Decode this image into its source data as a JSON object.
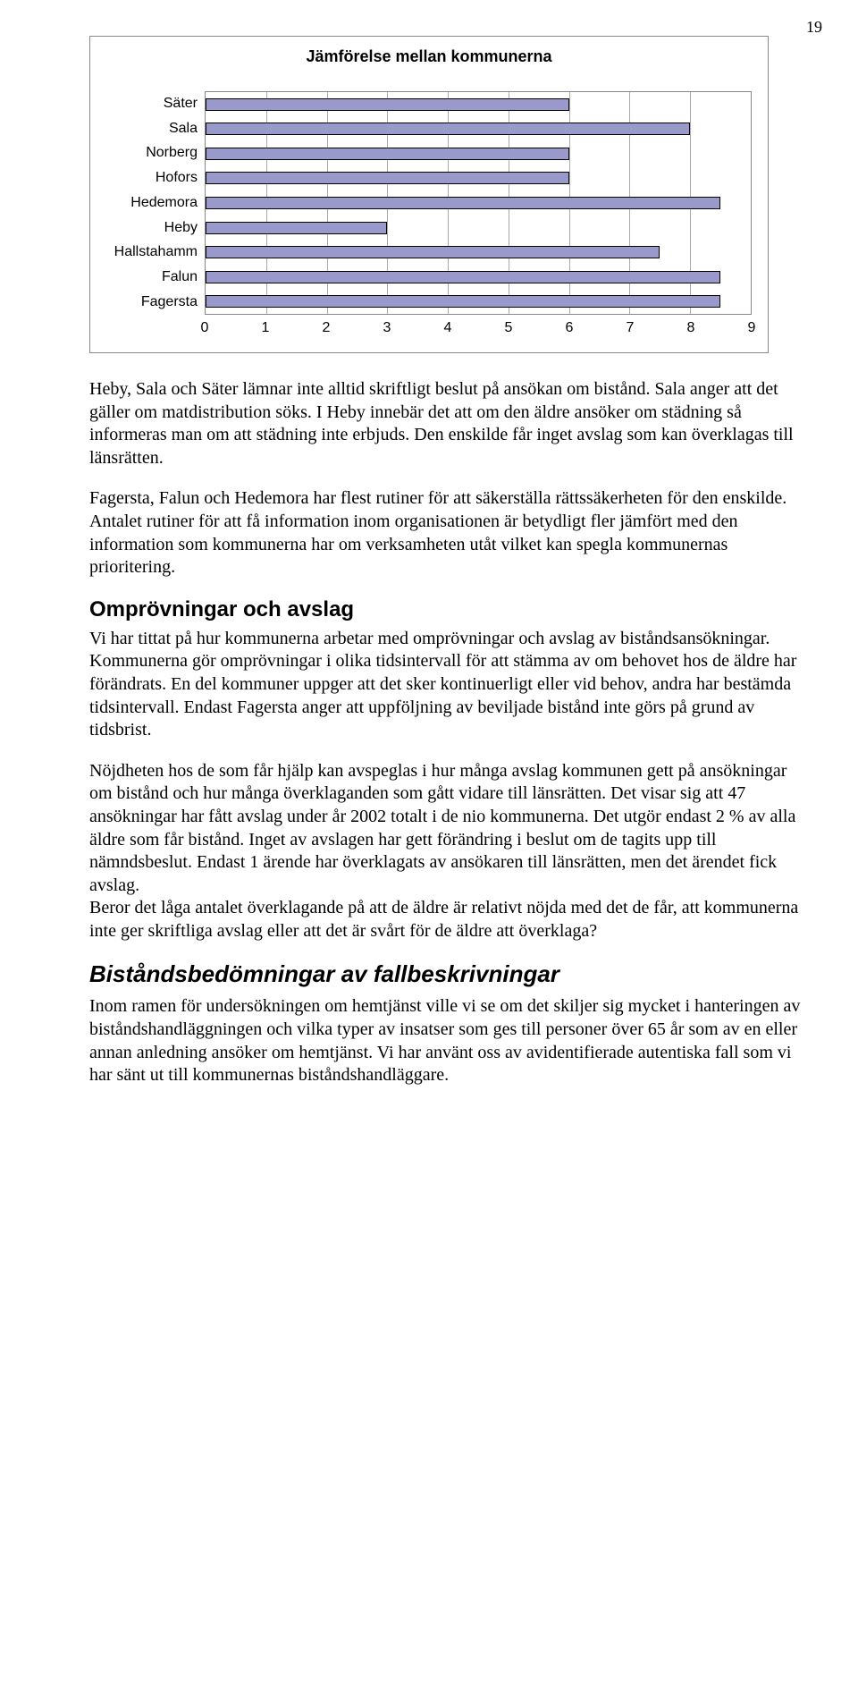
{
  "page_number": "19",
  "chart": {
    "type": "bar-horizontal",
    "title": "Jämförelse mellan kommunerna",
    "categories": [
      "Säter",
      "Sala",
      "Norberg",
      "Hofors",
      "Hedemora",
      "Heby",
      "Hallstahamm",
      "Falun",
      "Fagersta"
    ],
    "values": [
      6,
      8,
      6,
      6,
      8.5,
      3,
      7.5,
      8.5,
      8.5
    ],
    "xlim": [
      0,
      9
    ],
    "xticks": [
      0,
      1,
      2,
      3,
      4,
      5,
      6,
      7,
      8,
      9
    ],
    "bar_color": "#9999cc",
    "bar_border": "#000000",
    "grid_color": "#aaaaaa",
    "border_color": "#888888",
    "background_color": "#ffffff",
    "title_fontsize": 18,
    "label_fontsize": 16,
    "axis_font": "Arial"
  },
  "paragraphs": {
    "p1": "Heby, Sala och Säter lämnar inte alltid skriftligt beslut på ansökan om bistånd. Sala anger att det gäller om matdistribution söks. I Heby innebär det att om den äldre ansöker om städning så informeras man om att städning inte erbjuds. Den enskilde får inget avslag som kan överklagas till länsrätten.",
    "p2": "Fagersta, Falun och Hedemora har flest rutiner för att säkerställa rättssäkerheten för den enskilde. Antalet rutiner för att få information inom organisationen är betydligt fler jämfört med den information som kommunerna har om verksamheten utåt vilket kan spegla kommunernas prioritering.",
    "p3": "Vi har tittat på hur kommunerna arbetar med omprövningar och avslag av biståndsansökningar. Kommunerna gör omprövningar i olika tidsintervall för att stämma av om behovet hos de äldre har förändrats. En del kommuner uppger att det sker kontinuerligt eller vid behov, andra har bestämda tidsintervall. Endast Fagersta anger att uppföljning av beviljade bistånd inte görs på grund av tidsbrist.",
    "p4": "Nöjdheten hos de som får hjälp kan avspeglas i hur många avslag kommunen gett på ansökningar om bistånd och hur många överklaganden som gått vidare till länsrätten. Det visar sig att 47 ansökningar har fått avslag under år 2002 totalt i de nio kommunerna. Det utgör endast 2 % av alla äldre som får bistånd. Inget av avslagen har gett förändring i beslut om de tagits upp till nämndsbeslut. Endast 1 ärende har överklagats av ansökaren till länsrätten, men det ärendet fick avslag.",
    "p5": "Beror det låga antalet överklagande på att de äldre är relativt nöjda med det de får, att kommunerna inte ger skriftliga avslag eller att det är svårt för de äldre att överklaga?",
    "p6": "Inom ramen för undersökningen om hemtjänst ville vi se om det skiljer sig mycket i hanteringen av biståndshandläggningen och vilka typer av insatser som ges till personer över 65 år som av en eller annan anledning ansöker om hemtjänst. Vi har använt oss av avidentifierade autentiska fall som vi har sänt ut till kommunernas biståndshandläggare."
  },
  "headings": {
    "h_omprov": "Omprövningar och avslag",
    "h_bistand": "Biståndsbedömningar av fallbeskrivningar"
  }
}
